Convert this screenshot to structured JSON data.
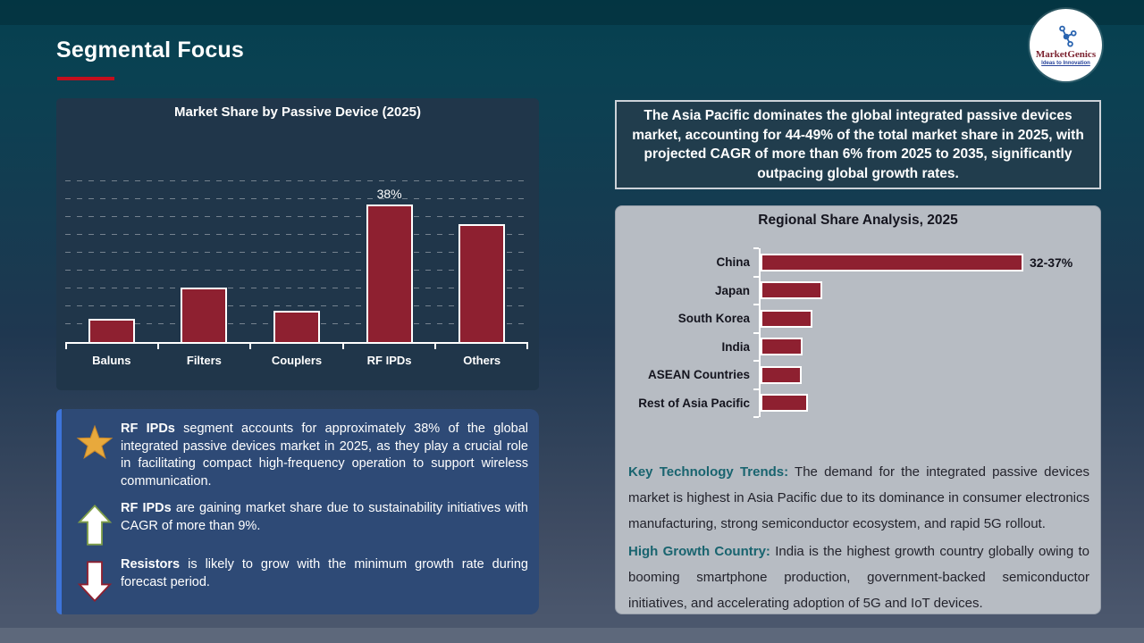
{
  "slide": {
    "title": "Segmental Focus"
  },
  "logo": {
    "brand": "MarketGenics",
    "tagline": "Ideas to Innovation"
  },
  "colors": {
    "accent_red": "#c40e1d",
    "bar_fill": "#8e2030",
    "panel_dark": "#20364a",
    "insight_blue": "#2e4a76",
    "insight_stripe": "#3d74da",
    "gray_panel": "#b7bcc3",
    "teal_lead": "#19646f",
    "star_gold": "#e8a93c"
  },
  "summary_box": {
    "text": "The Asia Pacific dominates the global integrated passive devices market, accounting for 44-49% of the total market share in 2025, with projected CAGR of more than 6% from 2025 to 2035, significantly outpacing global growth rates."
  },
  "insight_box": {
    "items": [
      {
        "icon": "star",
        "lead": "RF IPDs",
        "text": " segment accounts for approximately 38% of the global integrated passive devices market in 2025, as they play a crucial role in facilitating compact high-frequency operation to support wireless communication."
      },
      {
        "icon": "up-arrow",
        "lead": "RF IPDs",
        "text": " are gaining market share due to sustainability initiatives with CAGR of more than 9%."
      },
      {
        "icon": "down-arrow",
        "lead": "Resistors",
        "text": " is likely to grow with the minimum growth rate during forecast period."
      }
    ]
  },
  "trends": [
    {
      "lead": "Key Technology Trends:",
      "text": " The demand for the integrated passive devices market is highest in Asia Pacific due to its dominance in consumer electronics manufacturing, strong semiconductor ecosystem, and rapid 5G rollout."
    },
    {
      "lead": "High Growth Country:",
      "text": " India is the highest growth country globally owing to booming smartphone production, government-backed semiconductor initiatives, and accelerating adoption of 5G and IoT devices."
    }
  ],
  "chart_data": [
    {
      "type": "bar",
      "title": "Market Share by Passive Device (2025)",
      "categories": [
        "Baluns",
        "Filters",
        "Couplers",
        "RF IPDs",
        "Others"
      ],
      "values": [
        6,
        14.8,
        8.3,
        38,
        32.5
      ],
      "data_labels": [
        "",
        "",
        "",
        "38%",
        ""
      ],
      "xlabel": "",
      "ylabel": "",
      "ylim": [
        0,
        47
      ],
      "grid": "dashed horizontal, 5% steps",
      "legend": "none"
    },
    {
      "type": "bar-horizontal",
      "title": "Regional Share Analysis, 2025",
      "categories": [
        "China",
        "Japan",
        "South Korea",
        "India",
        "ASEAN Countries",
        "Rest of Asia Pacific"
      ],
      "values": [
        34.5,
        7.7,
        6.4,
        5.1,
        5.0,
        5.8
      ],
      "data_labels": [
        "32-37%",
        "",
        "",
        "",
        "",
        ""
      ],
      "xlabel": "",
      "ylabel": "",
      "xlim": [
        0,
        60
      ],
      "grid": "off",
      "legend": "none"
    }
  ]
}
